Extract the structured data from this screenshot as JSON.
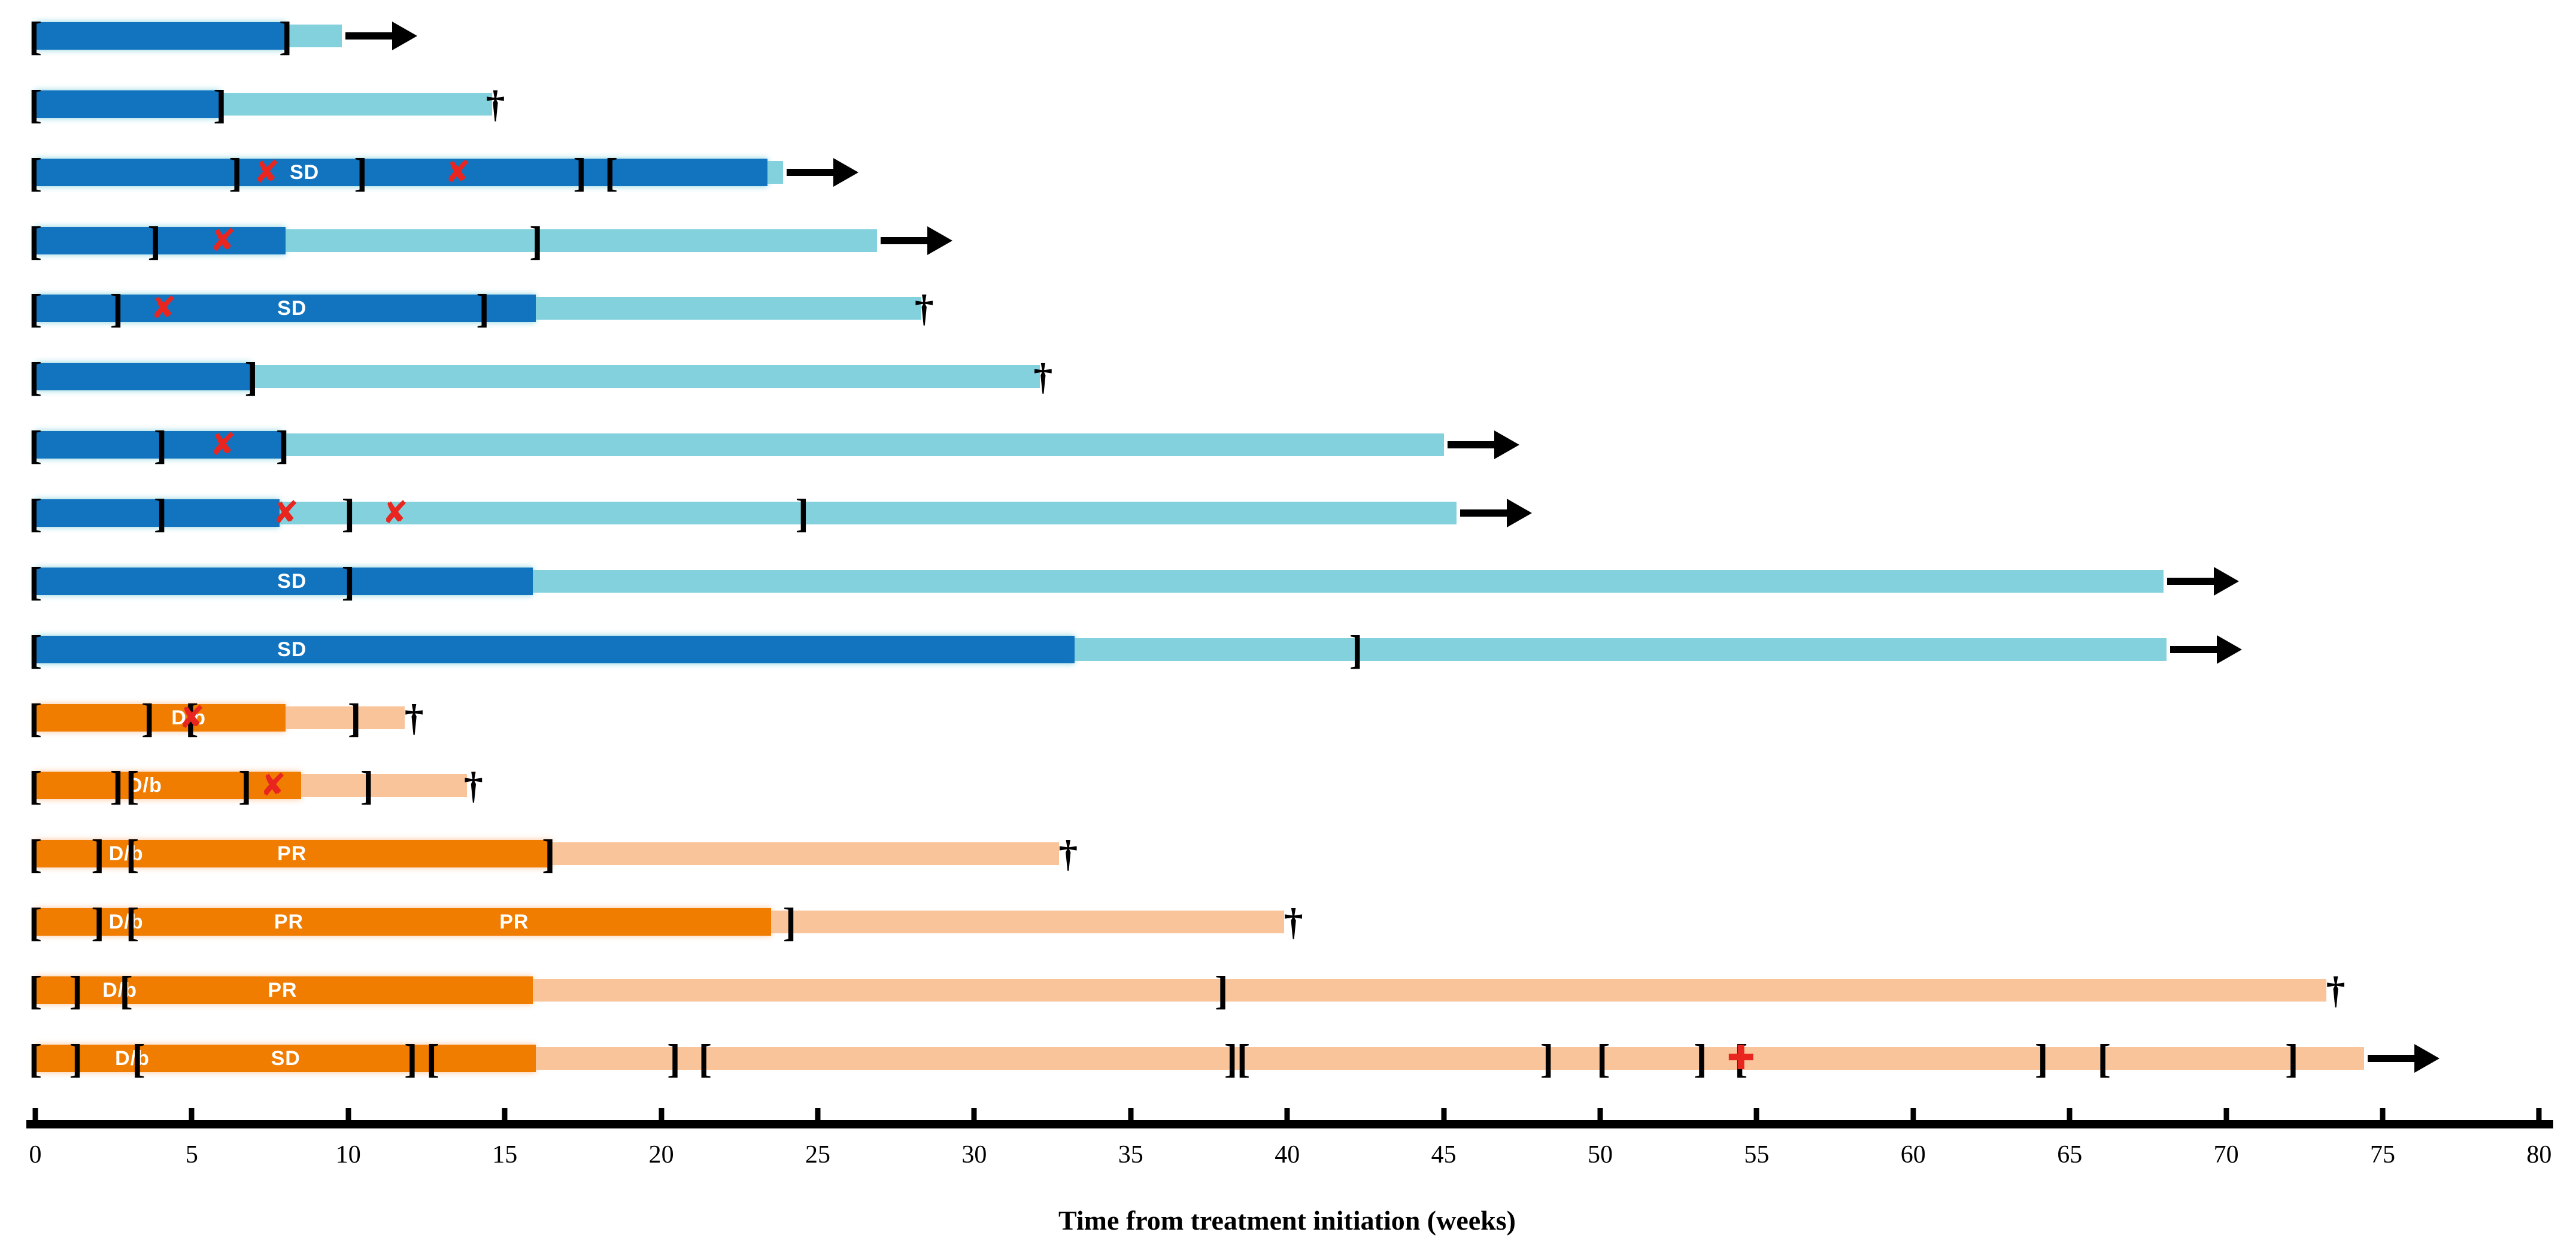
{
  "chart_data": {
    "type": "bar",
    "variant": "swimmer-plot",
    "title": "",
    "xlabel": "Time from treatment initiation (weeks)",
    "ylabel": "",
    "xlim": [
      0,
      80
    ],
    "xticks": [
      0,
      5,
      10,
      15,
      20,
      25,
      30,
      35,
      40,
      45,
      50,
      55,
      60,
      65,
      70,
      75,
      80
    ],
    "grid": "off",
    "legend": "none",
    "colors": {
      "treatment_blue": "#1273BF",
      "followup_blue": "#84D1DE",
      "treatment_orange": "#F07C00",
      "followup_orange": "#FAC49A",
      "event_red": "#E8251F",
      "marks_black": "#000000"
    },
    "glyphs": {
      "open_bracket": "[",
      "close_bracket": "]",
      "dagger": "†",
      "x_mark": "✘",
      "plus_mark": "✚"
    },
    "patients": [
      {
        "id": "P1",
        "group": "blue",
        "treatment_end_weeks": 8.0,
        "total_weeks": 9.8,
        "end": "arrow",
        "brackets": [
          {
            "t": "open",
            "w": 0
          },
          {
            "t": "close",
            "w": 8.0
          }
        ],
        "x_marks": [],
        "plus_marks": [],
        "labels": []
      },
      {
        "id": "P2",
        "group": "blue",
        "treatment_end_weeks": 5.9,
        "total_weeks": 14.6,
        "end": "dagger",
        "end_w": 14.7,
        "brackets": [
          {
            "t": "open",
            "w": 0
          },
          {
            "t": "close",
            "w": 5.9
          }
        ],
        "x_marks": [],
        "plus_marks": [],
        "labels": []
      },
      {
        "id": "P3",
        "group": "blue",
        "treatment_end_weeks": 23.4,
        "total_weeks": 23.9,
        "end": "arrow",
        "brackets": [
          {
            "t": "open",
            "w": 0
          },
          {
            "t": "close",
            "w": 6.4
          },
          {
            "t": "close",
            "w": 10.4
          },
          {
            "t": "close",
            "w": 17.4
          },
          {
            "t": "open",
            "w": 18.4
          }
        ],
        "x_marks": [
          7.4,
          13.5
        ],
        "plus_marks": [],
        "labels": [
          {
            "text": "SD",
            "w": 8.6
          }
        ]
      },
      {
        "id": "P4",
        "group": "blue",
        "treatment_end_weeks": 8.0,
        "total_weeks": 26.9,
        "end": "arrow",
        "brackets": [
          {
            "t": "open",
            "w": 0
          },
          {
            "t": "close",
            "w": 3.8
          },
          {
            "t": "close",
            "w": 16.0
          }
        ],
        "x_marks": [
          6.0
        ],
        "plus_marks": [],
        "labels": []
      },
      {
        "id": "P5",
        "group": "blue",
        "treatment_end_weeks": 16.0,
        "total_weeks": 28.3,
        "end": "dagger",
        "end_w": 28.4,
        "brackets": [
          {
            "t": "open",
            "w": 0
          },
          {
            "t": "close",
            "w": 2.6
          },
          {
            "t": "close",
            "w": 14.3
          }
        ],
        "x_marks": [
          4.1
        ],
        "plus_marks": [],
        "labels": [
          {
            "text": "SD",
            "w": 8.2
          }
        ]
      },
      {
        "id": "P6",
        "group": "blue",
        "treatment_end_weeks": 6.9,
        "total_weeks": 32.1,
        "end": "dagger",
        "end_w": 32.2,
        "brackets": [
          {
            "t": "open",
            "w": 0
          },
          {
            "t": "close",
            "w": 6.9
          }
        ],
        "x_marks": [],
        "plus_marks": [],
        "labels": []
      },
      {
        "id": "P7",
        "group": "blue",
        "treatment_end_weeks": 7.9,
        "total_weeks": 45.0,
        "end": "arrow",
        "brackets": [
          {
            "t": "open",
            "w": 0
          },
          {
            "t": "close",
            "w": 4.0
          },
          {
            "t": "close",
            "w": 7.9
          }
        ],
        "x_marks": [
          6.0
        ],
        "plus_marks": [],
        "labels": []
      },
      {
        "id": "P8",
        "group": "blue",
        "treatment_end_weeks": 7.8,
        "total_weeks": 45.4,
        "end": "arrow",
        "brackets": [
          {
            "t": "open",
            "w": 0
          },
          {
            "t": "close",
            "w": 4.0
          },
          {
            "t": "close",
            "w": 10.0
          },
          {
            "t": "close",
            "w": 24.5
          }
        ],
        "x_marks": [
          8.0,
          11.5
        ],
        "plus_marks": [],
        "labels": []
      },
      {
        "id": "P9",
        "group": "blue",
        "treatment_end_weeks": 15.9,
        "total_weeks": 68.0,
        "end": "arrow",
        "brackets": [
          {
            "t": "open",
            "w": 0
          },
          {
            "t": "close",
            "w": 10.0
          }
        ],
        "x_marks": [],
        "plus_marks": [],
        "labels": [
          {
            "text": "SD",
            "w": 8.2
          }
        ]
      },
      {
        "id": "P10",
        "group": "blue",
        "treatment_end_weeks": 33.2,
        "total_weeks": 68.1,
        "end": "arrow",
        "brackets": [
          {
            "t": "open",
            "w": 0
          },
          {
            "t": "close",
            "w": 42.2
          }
        ],
        "x_marks": [],
        "plus_marks": [],
        "labels": [
          {
            "text": "SD",
            "w": 8.2
          }
        ]
      },
      {
        "id": "P11",
        "group": "orange",
        "treatment_end_weeks": 8.0,
        "total_weeks": 11.8,
        "end": "dagger",
        "end_w": 12.1,
        "brackets": [
          {
            "t": "open",
            "w": 0
          },
          {
            "t": "close",
            "w": 3.6
          },
          {
            "t": "open",
            "w": 5.0
          },
          {
            "t": "close",
            "w": 10.2
          }
        ],
        "x_marks": [
          5.0
        ],
        "plus_marks": [],
        "labels": [
          {
            "text": "D/b",
            "w": 4.9
          }
        ]
      },
      {
        "id": "P12",
        "group": "orange",
        "treatment_end_weeks": 8.5,
        "total_weeks": 13.8,
        "end": "dagger",
        "end_w": 14.0,
        "brackets": [
          {
            "t": "open",
            "w": 0
          },
          {
            "t": "close",
            "w": 2.6
          },
          {
            "t": "open",
            "w": 3.1
          },
          {
            "t": "close",
            "w": 6.7
          },
          {
            "t": "close",
            "w": 10.6
          }
        ],
        "x_marks": [
          7.6
        ],
        "plus_marks": [],
        "labels": [
          {
            "text": "D/b",
            "w": 3.5
          }
        ]
      },
      {
        "id": "P13",
        "group": "orange",
        "treatment_end_weeks": 16.5,
        "total_weeks": 32.7,
        "end": "dagger",
        "end_w": 33.0,
        "brackets": [
          {
            "t": "open",
            "w": 0
          },
          {
            "t": "close",
            "w": 2.0
          },
          {
            "t": "open",
            "w": 3.1
          },
          {
            "t": "close",
            "w": 16.4
          }
        ],
        "x_marks": [],
        "plus_marks": [],
        "labels": [
          {
            "text": "D/b",
            "w": 2.9
          },
          {
            "text": "PR",
            "w": 8.2
          }
        ]
      },
      {
        "id": "P14",
        "group": "orange",
        "treatment_end_weeks": 23.5,
        "total_weeks": 39.9,
        "end": "dagger",
        "end_w": 40.2,
        "brackets": [
          {
            "t": "open",
            "w": 0
          },
          {
            "t": "close",
            "w": 2.0
          },
          {
            "t": "open",
            "w": 3.1
          },
          {
            "t": "close",
            "w": 24.1
          }
        ],
        "x_marks": [],
        "plus_marks": [],
        "labels": [
          {
            "text": "D/b",
            "w": 2.9
          },
          {
            "text": "PR",
            "w": 8.1
          },
          {
            "text": "PR",
            "w": 15.3
          }
        ]
      },
      {
        "id": "P15",
        "group": "orange",
        "treatment_end_weeks": 15.9,
        "total_weeks": 73.2,
        "end": "dagger",
        "end_w": 73.5,
        "brackets": [
          {
            "t": "open",
            "w": 0
          },
          {
            "t": "close",
            "w": 1.3
          },
          {
            "t": "open",
            "w": 2.9
          },
          {
            "t": "close",
            "w": 37.9
          }
        ],
        "x_marks": [],
        "plus_marks": [],
        "labels": [
          {
            "text": "D/b",
            "w": 2.7
          },
          {
            "text": "PR",
            "w": 7.9
          }
        ]
      },
      {
        "id": "P16",
        "group": "orange",
        "treatment_end_weeks": 16.0,
        "total_weeks": 74.4,
        "end": "arrow",
        "brackets": [
          {
            "t": "open",
            "w": 0
          },
          {
            "t": "close",
            "w": 1.3
          },
          {
            "t": "open",
            "w": 3.3
          },
          {
            "t": "close",
            "w": 12.0
          },
          {
            "t": "open",
            "w": 12.7
          },
          {
            "t": "close",
            "w": 20.4
          },
          {
            "t": "open",
            "w": 21.4
          },
          {
            "t": "close",
            "w": 38.2
          },
          {
            "t": "open",
            "w": 38.6
          },
          {
            "t": "close",
            "w": 48.3
          },
          {
            "t": "open",
            "w": 50.1
          },
          {
            "t": "close",
            "w": 53.2
          },
          {
            "t": "open",
            "w": 54.5
          },
          {
            "t": "close",
            "w": 64.1
          },
          {
            "t": "open",
            "w": 66.1
          },
          {
            "t": "close",
            "w": 72.1
          }
        ],
        "x_marks": [],
        "plus_marks": [
          54.5
        ],
        "labels": [
          {
            "text": "D/b",
            "w": 3.1
          },
          {
            "text": "SD",
            "w": 8.0
          }
        ]
      }
    ]
  }
}
